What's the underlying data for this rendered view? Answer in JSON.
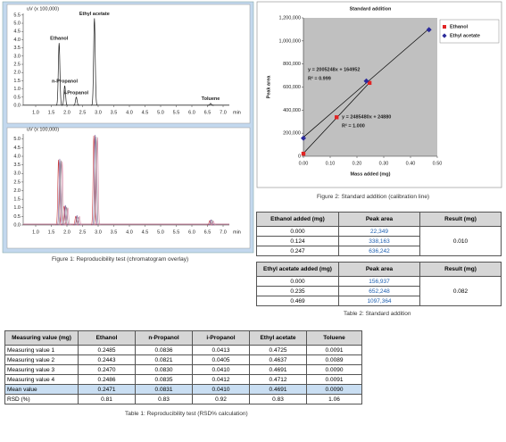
{
  "chart_data": [
    {
      "type": "chromatogram",
      "y_label": "uV (x 100,000)",
      "x_label": "min",
      "xlim": [
        0.6,
        7.2
      ],
      "ylim": [
        0,
        5.6
      ],
      "xticks": [
        {
          "value": 1,
          "label": "1.0"
        },
        {
          "value": 1.5,
          "label": "1.5"
        },
        {
          "value": 2,
          "label": "2.0"
        },
        {
          "value": 2.5,
          "label": "2.5"
        },
        {
          "value": 3,
          "label": "3.0"
        },
        {
          "value": 3.5,
          "label": "3.5"
        },
        {
          "value": 4,
          "label": "4.0"
        },
        {
          "value": 4.5,
          "label": "4.5"
        },
        {
          "value": 5,
          "label": "5.0"
        },
        {
          "value": 5.5,
          "label": "5.5"
        },
        {
          "value": 6,
          "label": "6.0"
        },
        {
          "value": 6.5,
          "label": "6.5"
        },
        {
          "value": 7,
          "label": "7.0"
        }
      ],
      "yticks": [
        {
          "value": 0,
          "label": "0.0"
        },
        {
          "value": 0.5,
          "label": "0.5"
        },
        {
          "value": 1,
          "label": "1.0"
        },
        {
          "value": 1.5,
          "label": "1.5"
        },
        {
          "value": 2,
          "label": "2.0"
        },
        {
          "value": 2.5,
          "label": "2.5"
        },
        {
          "value": 3,
          "label": "3.0"
        },
        {
          "value": 3.5,
          "label": "3.5"
        },
        {
          "value": 4,
          "label": "4.0"
        },
        {
          "value": 4.5,
          "label": "4.5"
        },
        {
          "value": 5,
          "label": "5.0"
        },
        {
          "value": 5.5,
          "label": "5.5"
        }
      ],
      "color": "#222222",
      "peaks": [
        {
          "label": "Ethanol",
          "time": 1.75,
          "height": 3.8
        },
        {
          "label": "n-Propanol",
          "time": 1.93,
          "height": 1.2
        },
        {
          "label": "i-Propanol",
          "time": 2.3,
          "height": 0.5
        },
        {
          "label": "Ethyl acetate",
          "time": 2.88,
          "height": 5.3
        },
        {
          "label": "Toluene",
          "time": 6.6,
          "height": 0.12
        }
      ]
    },
    {
      "type": "chromatogram",
      "y_label": "uV (x 100,000)",
      "x_label": "min",
      "xlim": [
        0.6,
        7.2
      ],
      "ylim": [
        0,
        5.3
      ],
      "xticks": [
        {
          "value": 1,
          "label": "1.0"
        },
        {
          "value": 1.5,
          "label": "1.5"
        },
        {
          "value": 2,
          "label": "2.0"
        },
        {
          "value": 2.5,
          "label": "2.5"
        },
        {
          "value": 3,
          "label": "3.0"
        },
        {
          "value": 3.5,
          "label": "3.5"
        },
        {
          "value": 4,
          "label": "4.0"
        },
        {
          "value": 4.5,
          "label": "4.5"
        },
        {
          "value": 5,
          "label": "5.0"
        },
        {
          "value": 5.5,
          "label": "5.5"
        },
        {
          "value": 6,
          "label": "6.0"
        },
        {
          "value": 6.5,
          "label": "6.5"
        },
        {
          "value": 7,
          "label": "7.0"
        }
      ],
      "yticks": [
        {
          "value": 0,
          "label": "0.0"
        },
        {
          "value": 0.5,
          "label": "0.5"
        },
        {
          "value": 1,
          "label": "1.0"
        },
        {
          "value": 1.5,
          "label": "1.5"
        },
        {
          "value": 2,
          "label": "2.0"
        },
        {
          "value": 2.5,
          "label": "2.5"
        },
        {
          "value": 3,
          "label": "3.0"
        },
        {
          "value": 3.5,
          "label": "3.5"
        },
        {
          "value": 4,
          "label": "4.0"
        },
        {
          "value": 4.5,
          "label": "4.5"
        },
        {
          "value": 5,
          "label": "5.0"
        }
      ],
      "series": [
        {
          "color": "#c83a3a",
          "times": [
            1.73,
            1.91,
            2.28,
            2.86,
            6.57
          ],
          "heights": [
            3.8,
            1.1,
            0.5,
            5.2,
            0.25
          ]
        },
        {
          "color": "#7a5a9a",
          "times": [
            1.77,
            1.95,
            2.32,
            2.9,
            6.61
          ],
          "heights": [
            3.85,
            1.15,
            0.55,
            5.25,
            0.3
          ]
        },
        {
          "color": "#8a8a8a",
          "times": [
            1.81,
            1.99,
            2.36,
            2.94,
            6.65
          ],
          "heights": [
            3.75,
            1.05,
            0.45,
            5.15,
            0.28
          ]
        },
        {
          "color": "#d88aa8",
          "times": [
            1.85,
            2.03,
            2.4,
            2.98,
            6.69
          ],
          "heights": [
            3.7,
            1.0,
            0.5,
            5.1,
            0.22
          ]
        }
      ]
    },
    {
      "type": "scatter",
      "title": "Standard addition",
      "x_label": "Mass added (mg)",
      "y_label": "Peak area",
      "xlim": [
        0,
        0.5
      ],
      "ylim": [
        0,
        1200000
      ],
      "xticks": [
        {
          "value": 0,
          "label": "0.00"
        },
        {
          "value": 0.1,
          "label": "0.10"
        },
        {
          "value": 0.2,
          "label": "0.20"
        },
        {
          "value": 0.3,
          "label": "0.30"
        },
        {
          "value": 0.4,
          "label": "0.40"
        },
        {
          "value": 0.5,
          "label": "0.50"
        }
      ],
      "yticks": [
        0,
        {
          "value": 200000,
          "label": "200,000"
        },
        {
          "value": 400000,
          "label": "400,000"
        },
        {
          "value": 600000,
          "label": "600,000"
        },
        {
          "value": 800000,
          "label": "800,000"
        },
        {
          "value": 1000000,
          "label": "1,000,000"
        },
        {
          "value": 1200000,
          "label": "1,200,000"
        }
      ],
      "legend": "right",
      "series": [
        {
          "name": "Ethanol",
          "color": "#e02424",
          "marker": "square",
          "x": [
            0,
            0.124,
            0.247
          ],
          "values": [
            22349,
            338163,
            636242
          ],
          "fit": {
            "slope": 2485480,
            "intercept": 24880,
            "equation": "y = 2485480x + 24880",
            "r2": "R² = 1.000"
          }
        },
        {
          "name": "Ethyl acetate",
          "color": "#2a2a9a",
          "marker": "diamond",
          "x": [
            0,
            0.235,
            0.469
          ],
          "values": [
            156937,
            652248,
            1097364
          ],
          "fit": {
            "slope": 2005248,
            "intercept": 164952,
            "equation": "y = 2005248x + 164952",
            "r2": "R² = 0.999"
          }
        }
      ]
    }
  ],
  "figure1_caption": "Figure 1: Reproducibility test (chromatogram overlay)",
  "figure2_caption": "Figure 2: Standard addition (calibration line)",
  "table2": {
    "caption": "Table 2: Standard addition",
    "blocks": [
      {
        "header": [
          "Ethanol added (mg)",
          "Peak area",
          "Result (mg)"
        ],
        "rows": [
          [
            "0.000",
            "22,349"
          ],
          [
            "0.124",
            "338,163"
          ],
          [
            "0.247",
            "636,242"
          ]
        ],
        "result": "0.010"
      },
      {
        "header": [
          "Ethyl acetate added (mg)",
          "Peak area",
          "Result (mg)"
        ],
        "rows": [
          [
            "0.000",
            "156,937"
          ],
          [
            "0.235",
            "652,248"
          ],
          [
            "0.469",
            "1097,364"
          ]
        ],
        "result": "0.082"
      }
    ]
  },
  "table1": {
    "caption": "Table 1: Reproducibility test (RSD% calculation)",
    "header": [
      "Measuring value (mg)",
      "Ethanol",
      "n-Propanol",
      "i-Propanol",
      "Ethyl acetate",
      "Toluene"
    ],
    "rows": [
      [
        "Measuring value 1",
        "0.2485",
        "0.0836",
        "0.0413",
        "0.4725",
        "0.0091"
      ],
      [
        "Measuring value 2",
        "0.2443",
        "0.0821",
        "0.0405",
        "0.4637",
        "0.0089"
      ],
      [
        "Measuring value 3",
        "0.2470",
        "0.0830",
        "0.0410",
        "0.4691",
        "0.0090"
      ],
      [
        "Measuring value 4",
        "0.2486",
        "0.0835",
        "0.0412",
        "0.4712",
        "0.0091"
      ],
      [
        "Mean value",
        "0.2471",
        "0.0831",
        "0.0410",
        "0.4691",
        "0.0090"
      ],
      [
        "RSD (%)",
        "0.81",
        "0.83",
        "0.92",
        "0.83",
        "1.06"
      ]
    ]
  }
}
